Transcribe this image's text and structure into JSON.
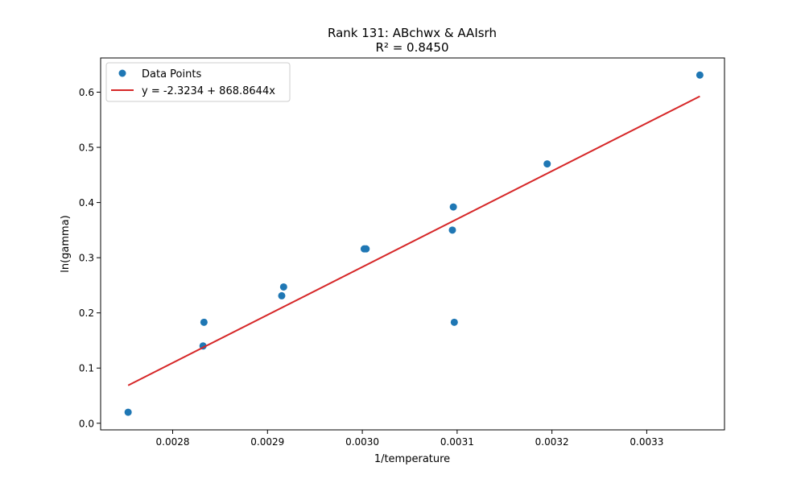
{
  "chart_data": {
    "type": "scatter",
    "title": "Rank 131: ABchwx & AAIsrh",
    "subtitle": "R² = 0.8450",
    "xlabel": "1/temperature",
    "ylabel": "ln(gamma)",
    "xlim": [
      0.002724,
      0.003382
    ],
    "ylim": [
      -0.012,
      0.662
    ],
    "xticks": [
      0.0028,
      0.0029,
      0.003,
      0.0031,
      0.0032,
      0.0033
    ],
    "xtick_labels": [
      "0.0028",
      "0.0029",
      "0.0030",
      "0.0031",
      "0.0032",
      "0.0033"
    ],
    "yticks": [
      0.0,
      0.1,
      0.2,
      0.3,
      0.4,
      0.5,
      0.6
    ],
    "ytick_labels": [
      "0.0",
      "0.1",
      "0.2",
      "0.3",
      "0.4",
      "0.5",
      "0.6"
    ],
    "legend_position": "top-left",
    "series": [
      {
        "name": "Data Points",
        "kind": "scatter",
        "color": "#1f77b4",
        "x": [
          0.002753,
          0.002832,
          0.002833,
          0.002915,
          0.002917,
          0.003002,
          0.003004,
          0.003095,
          0.003096,
          0.003097,
          0.003195,
          0.003356
        ],
        "y": [
          0.02,
          0.14,
          0.183,
          0.231,
          0.247,
          0.316,
          0.316,
          0.35,
          0.392,
          0.183,
          0.47,
          0.631
        ]
      },
      {
        "name": "y = -2.3234 + 868.8644x",
        "kind": "line",
        "color": "#d62728",
        "intercept": -2.3234,
        "slope": 868.8644,
        "x_range": [
          0.002753,
          0.003356
        ]
      }
    ]
  }
}
